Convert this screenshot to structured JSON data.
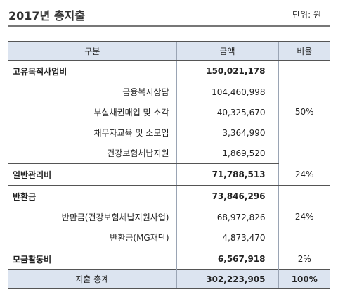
{
  "header": {
    "title": "2017년 총지출",
    "unit": "단위: 원"
  },
  "table": {
    "columns": [
      "구분",
      "금액",
      "비율"
    ],
    "rows": [
      {
        "label": "고유목적사업비",
        "amount": "150,021,178"
      },
      {
        "label": "금융복지상담",
        "amount": "104,460,998"
      },
      {
        "label": "부실채권매입 및 소각",
        "amount": "40,325,670",
        "percent": "50%"
      },
      {
        "label": "채무자교육 및 소모임",
        "amount": "3,364,990"
      },
      {
        "label": "건강보험체납지원",
        "amount": "1,869,520"
      },
      {
        "label": "일반관리비",
        "amount": "71,788,513",
        "percent": "24%"
      },
      {
        "label": "반환금",
        "amount": "73,846,296"
      },
      {
        "label": "반환금(건강보험체납지원사업)",
        "amount": "68,972,826",
        "percent": "24%"
      },
      {
        "label": "반환금(MG재단)",
        "amount": "4,873,470"
      },
      {
        "label": "모금활동비",
        "amount": "6,567,918",
        "percent": "2%"
      }
    ],
    "total": {
      "label": "지출 총계",
      "amount": "302,223,905",
      "percent": "100%"
    }
  }
}
